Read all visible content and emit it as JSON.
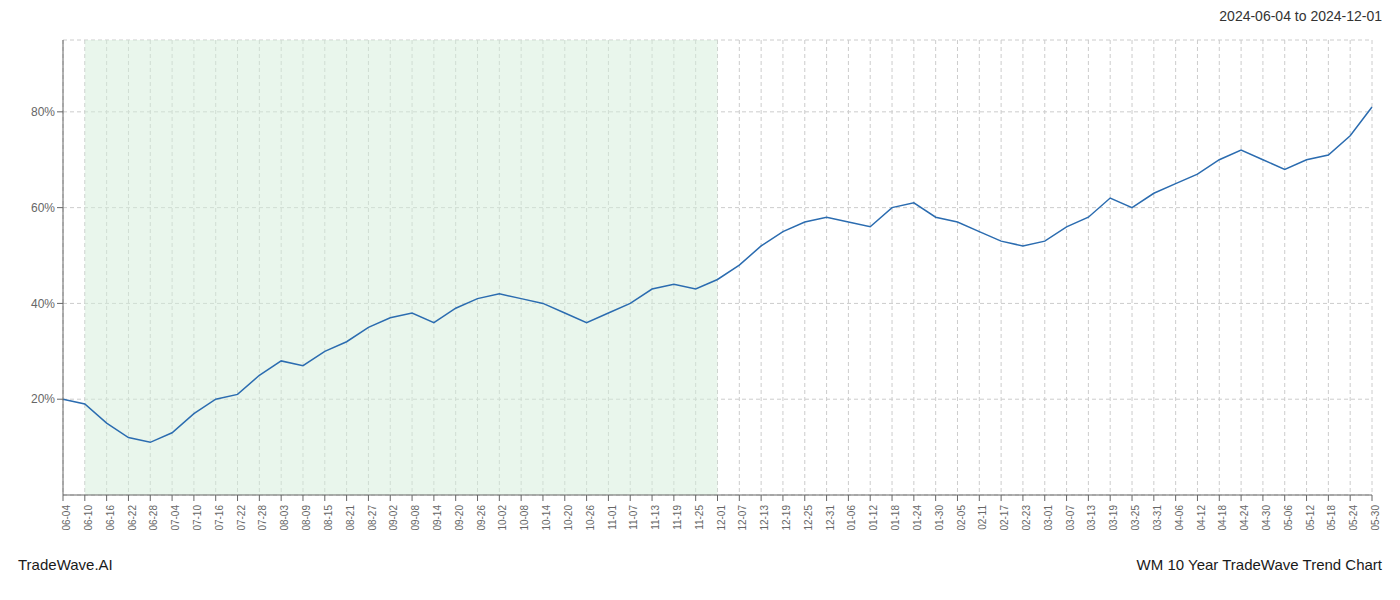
{
  "chart_data": {
    "type": "line",
    "title": "WM 10 Year TradeWave Trend Chart",
    "subtitle": "2024-06-04 to 2024-12-01",
    "annotations": [
      "TradeWave.AI"
    ],
    "categories": [
      "06-04",
      "06-10",
      "06-16",
      "06-22",
      "06-28",
      "07-04",
      "07-10",
      "07-16",
      "07-22",
      "07-28",
      "08-03",
      "08-09",
      "08-15",
      "08-21",
      "08-27",
      "09-02",
      "09-08",
      "09-14",
      "09-20",
      "09-26",
      "10-02",
      "10-08",
      "10-14",
      "10-20",
      "10-26",
      "11-01",
      "11-07",
      "11-13",
      "11-19",
      "11-25",
      "12-01",
      "12-07",
      "12-13",
      "12-19",
      "12-25",
      "12-31",
      "01-06",
      "01-12",
      "01-18",
      "01-24",
      "01-30",
      "02-05",
      "02-11",
      "02-17",
      "02-23",
      "03-01",
      "03-07",
      "03-13",
      "03-19",
      "03-25",
      "03-31",
      "04-06",
      "04-12",
      "04-18",
      "04-24",
      "04-30",
      "05-06",
      "05-12",
      "05-18",
      "05-24",
      "05-30"
    ],
    "values": [
      20,
      19,
      15,
      12,
      11,
      13,
      17,
      20,
      21,
      25,
      28,
      27,
      30,
      32,
      35,
      37,
      38,
      36,
      39,
      41,
      42,
      41,
      40,
      38,
      36,
      38,
      40,
      43,
      44,
      43,
      45,
      48,
      52,
      55,
      57,
      58,
      57,
      56,
      60,
      61,
      58,
      57,
      55,
      53,
      52,
      53,
      56,
      58,
      62,
      60,
      63,
      65,
      67,
      70,
      72,
      70,
      68,
      70,
      71,
      75,
      81
    ],
    "color": "#2b6cb0",
    "highlight": {
      "start": "06-10",
      "end": "12-01",
      "color": "#d4edda"
    },
    "ylim": [
      0,
      95
    ],
    "yticks": [
      {
        "value": 20,
        "label": "20%"
      },
      {
        "value": 40,
        "label": "40%"
      },
      {
        "value": 60,
        "label": "60%"
      },
      {
        "value": 80,
        "label": "80%"
      }
    ],
    "grid": true
  }
}
